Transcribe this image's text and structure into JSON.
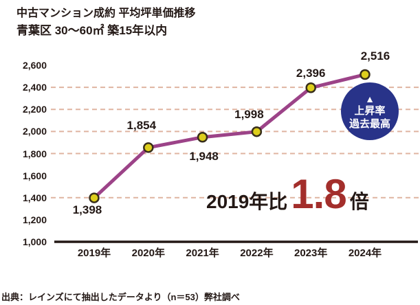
{
  "page": {
    "background": "#ffffff",
    "text_color": "#231815"
  },
  "title": {
    "line1": "中古マンション成約 平均坪単価推移",
    "line2": "青葉区 30〜60㎡ 築15年以内"
  },
  "chart_data": {
    "type": "line",
    "title": "中古マンション成約 平均坪単価推移（青葉区 30〜60㎡ 築15年以内）",
    "x": [
      "2019年",
      "2020年",
      "2021年",
      "2022年",
      "2023年",
      "2024年"
    ],
    "series": [
      {
        "name": "平均坪単価",
        "values": [
          1398,
          1854,
          1948,
          1998,
          2396,
          2516
        ]
      }
    ],
    "value_labels": [
      "1,398",
      "1,854",
      "1,948",
      "1,998",
      "2,396",
      "2,516"
    ],
    "label_side": [
      "below",
      "above",
      "below",
      "above",
      "above",
      "above"
    ],
    "xlabel": "",
    "ylabel": "",
    "ylim": [
      1000,
      2600
    ],
    "ytick_values": [
      2600,
      2400,
      2200,
      2000,
      1800,
      1600,
      1400,
      1200,
      1000
    ],
    "ytick_labels": [
      "2,600",
      "2,400",
      "2,200",
      "2,000",
      "1,800",
      "1,600",
      "1,400",
      "1,200",
      "1,000"
    ],
    "gridlines_at": [
      2400,
      2200,
      2000,
      1800,
      1400
    ],
    "grid_style": "dashed",
    "legend_position": "none",
    "colors": {
      "line": "#9c4388",
      "marker_fill": "#ddce1c",
      "marker_stroke": "#382e1b",
      "gridline": "#dfb4a0",
      "axis": "#231815"
    }
  },
  "badge": {
    "arrow": "▲",
    "line1": "上昇率",
    "line2": "過去最高",
    "bg_color": "#283389",
    "text_color": "#ffffff"
  },
  "callout": {
    "prefix": "2019年比",
    "value": "1.8",
    "suffix": "倍",
    "value_color": "#a32e2b",
    "text_color": "#231815"
  },
  "source": "出典：レインズにて抽出したデータより（n＝53）弊社調べ"
}
